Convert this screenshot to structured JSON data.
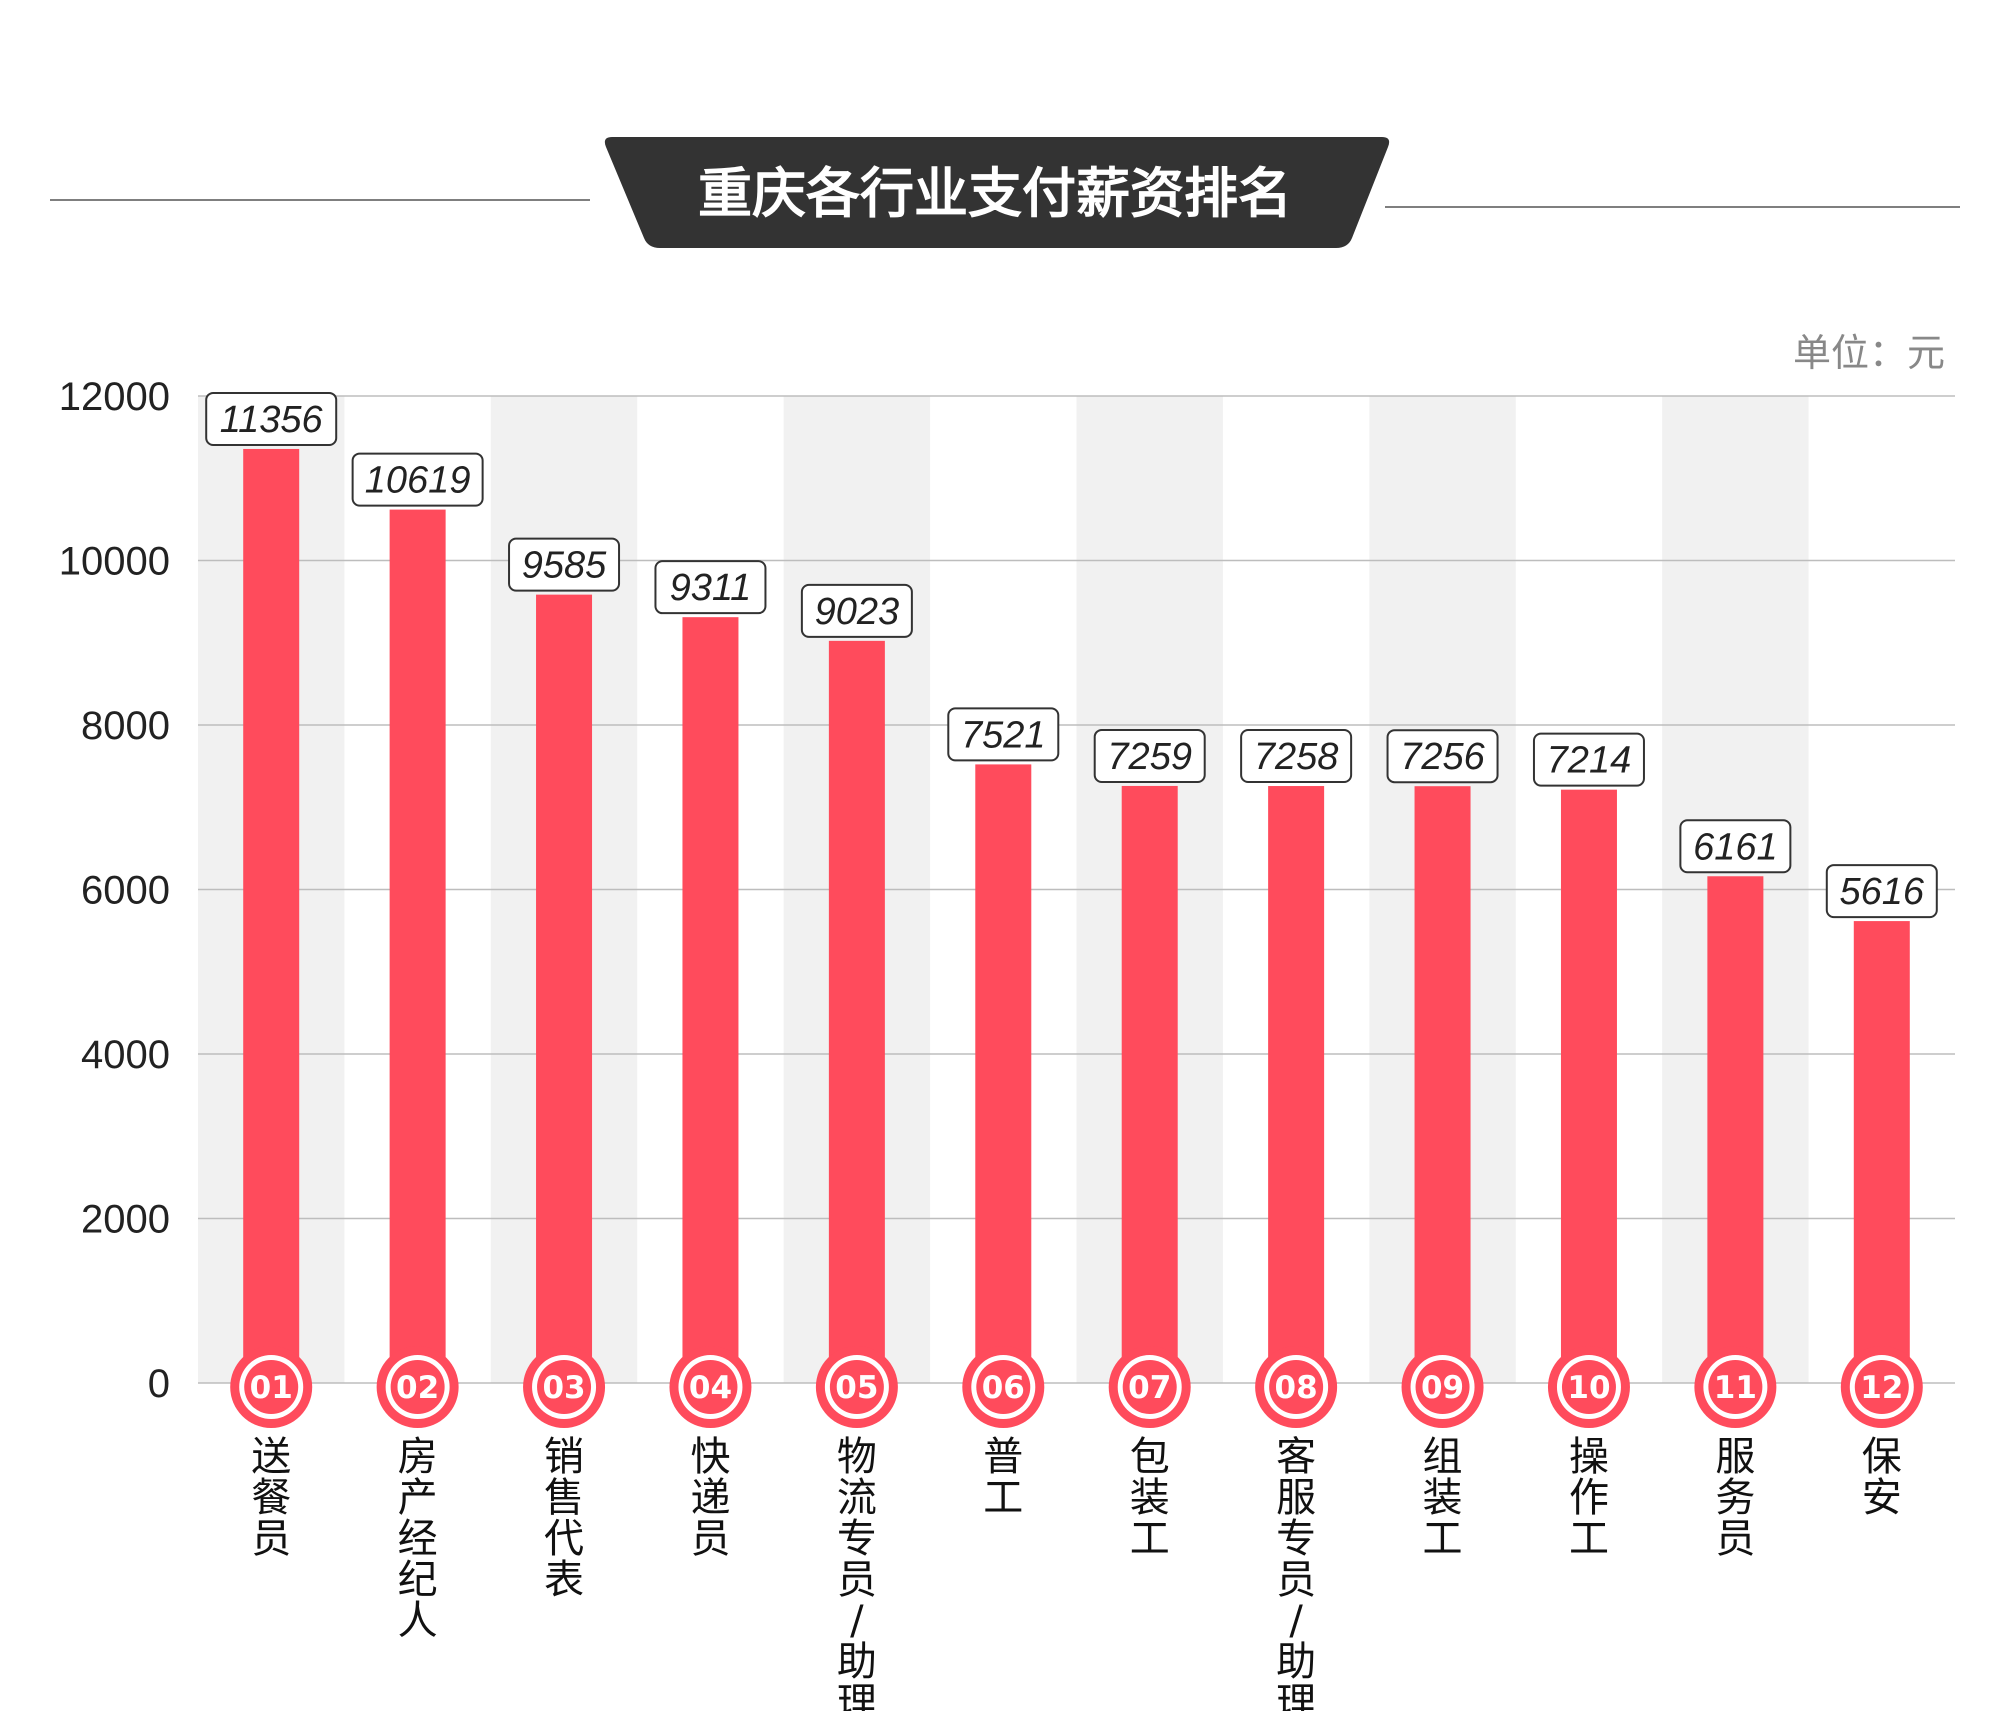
{
  "chart_data": {
    "type": "bar",
    "title": "重庆各行业支付薪资排名",
    "unit": "单位：元",
    "ylim": [
      0,
      12000
    ],
    "yticks": [
      0,
      2000,
      4000,
      6000,
      8000,
      10000,
      12000
    ],
    "categories": [
      "送餐员",
      "房产经纪人",
      "销售代表",
      "快递员",
      "物流专员/助理",
      "普工",
      "包装工",
      "客服专员/助理",
      "组装工",
      "操作工",
      "服务员",
      "保安"
    ],
    "ranks": [
      "01",
      "02",
      "03",
      "04",
      "05",
      "06",
      "07",
      "08",
      "09",
      "10",
      "11",
      "12"
    ],
    "values": [
      11356,
      10619,
      9585,
      9311,
      9023,
      7521,
      7259,
      7258,
      7256,
      7214,
      6161,
      5616
    ],
    "grid": true,
    "legend": "none"
  },
  "colors": {
    "bar": "#ff4b5c",
    "bar_shadow": "#e02a3c",
    "banner": "#333333",
    "band": "#f1f1f1"
  }
}
